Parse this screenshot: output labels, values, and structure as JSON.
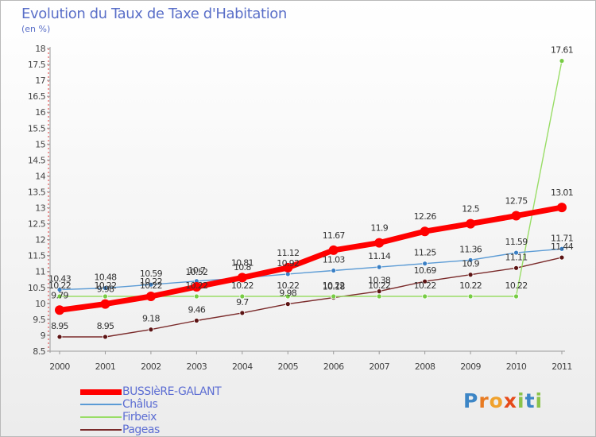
{
  "chart_data": {
    "type": "line",
    "title": "Evolution du Taux de Taxe d'Habitation",
    "unit_label": "(en %)",
    "xlabel": "",
    "ylabel": "(en %)",
    "x": [
      "2000",
      "2001",
      "2002",
      "2003",
      "2004",
      "2005",
      "2006",
      "2007",
      "2008",
      "2009",
      "2010",
      "2011"
    ],
    "ylim": [
      8.5,
      18
    ],
    "yticks": [
      "8.5",
      "9",
      "9.5",
      "10",
      "10.5",
      "11",
      "11.5",
      "12",
      "12.5",
      "13",
      "13.5",
      "14",
      "14.5",
      "15",
      "15.5",
      "16",
      "16.5",
      "17",
      "17.5",
      "18"
    ],
    "grid": false,
    "legend_position": "bottom-left",
    "series": [
      {
        "name": "BUSSIèRE-GALANT",
        "color": "#ff0000",
        "marker_color": "#ff0000",
        "values": [
          9.79,
          9.98,
          10.22,
          10.52,
          10.81,
          11.12,
          11.67,
          11.9,
          12.26,
          12.5,
          12.75,
          13.01
        ],
        "labels": [
          "9.79",
          "9.98",
          "10.22",
          "10.52",
          "10.81",
          "11.12",
          "11.67",
          "11.9",
          "12.26",
          "12.5",
          "12.75",
          "13.01"
        ]
      },
      {
        "name": "Châlus",
        "color": "#5b9bd5",
        "marker_color": "#3a7fc4",
        "values": [
          10.43,
          10.48,
          10.59,
          10.7,
          10.8,
          10.92,
          11.03,
          11.14,
          11.25,
          11.36,
          11.59,
          11.71
        ],
        "labels": [
          "10.43",
          "10.48",
          "10.59",
          "10.7",
          "10.8",
          "10.92",
          "11.03",
          "11.14",
          "11.25",
          "11.36",
          "11.59",
          "11.71"
        ]
      },
      {
        "name": "Firbeix",
        "color": "#99dd66",
        "marker_color": "#77cc44",
        "values": [
          10.22,
          10.22,
          10.22,
          10.22,
          10.22,
          10.22,
          10.22,
          10.22,
          10.22,
          10.22,
          10.22,
          17.61
        ],
        "labels": [
          "10.22",
          "10.22",
          "10.22",
          "10.22",
          "10.22",
          "10.22",
          "10.22",
          "10.22",
          "10.22",
          "10.22",
          "10.22",
          "17.61"
        ]
      },
      {
        "name": "Pageas",
        "color": "#7a2a2a",
        "marker_color": "#5c1414",
        "values": [
          8.95,
          8.95,
          9.18,
          9.46,
          9.7,
          9.98,
          10.18,
          10.38,
          10.69,
          10.9,
          11.11,
          11.44
        ],
        "labels": [
          "8.95",
          "8.95",
          "9.18",
          "9.46",
          "9.7",
          "9.98",
          "10.18",
          "10.38",
          "10.69",
          "10.9",
          "11.11",
          "11.44"
        ]
      }
    ]
  },
  "logo": {
    "letters": [
      "P",
      "r",
      "o",
      "x",
      "i",
      "t",
      "i"
    ]
  }
}
